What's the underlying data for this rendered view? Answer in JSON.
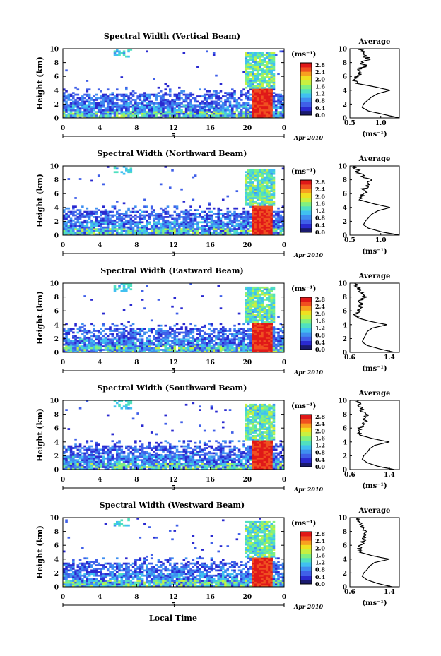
{
  "figure": {
    "xlabel": "Local Time",
    "date_label": "Apr 2010",
    "day_marker": "5",
    "average_title": "Average"
  },
  "colorbar": {
    "unit": "(ms⁻¹)",
    "tick_labels": [
      "0.0",
      "0.4",
      "0.8",
      "1.2",
      "1.6",
      "2.0",
      "2.4",
      "2.8"
    ],
    "colors": [
      "#1a1a6e",
      "#2a2ad0",
      "#3f5fe8",
      "#3f8ff0",
      "#40c0f0",
      "#50e0c0",
      "#80f080",
      "#c8f040",
      "#f0e020",
      "#f8a020",
      "#f05020",
      "#e01818"
    ]
  },
  "chart_data": [
    {
      "type": "heatmap",
      "title": "Spectral Width (Vertical Beam)",
      "ylabel": "Height (km)",
      "x_ticks": [
        "0",
        "4",
        "8",
        "12",
        "16",
        "20",
        "0"
      ],
      "y_ticks": [
        "0",
        "2",
        "4",
        "6",
        "8",
        "10"
      ],
      "xlim": [
        0,
        24
      ],
      "ylim": [
        0,
        10
      ],
      "colorbar_range": [
        0.0,
        2.8
      ],
      "average_profile": {
        "x_ticks": [
          "0.5",
          "1.0"
        ],
        "xlim": [
          0.5,
          1.3
        ],
        "xlabel": "(ms⁻¹)",
        "height_km": [
          0,
          0.5,
          1,
          1.5,
          2,
          2.5,
          3,
          3.5,
          4,
          4.2,
          4.5,
          5,
          5.5,
          6,
          6.5,
          7,
          7.5,
          8,
          8.5,
          9,
          9.5,
          10
        ],
        "width": [
          1.3,
          1.05,
          0.8,
          0.7,
          0.72,
          0.78,
          0.85,
          0.95,
          1.15,
          1.05,
          0.9,
          0.6,
          0.55,
          0.6,
          0.7,
          0.65,
          0.75,
          0.7,
          0.8,
          0.75,
          0.7,
          0.65
        ]
      }
    },
    {
      "type": "heatmap",
      "title": "Spectral Width (Northward Beam)",
      "ylabel": "Height (km)",
      "x_ticks": [
        "0",
        "4",
        "8",
        "12",
        "16",
        "20",
        "0"
      ],
      "y_ticks": [
        "0",
        "2",
        "4",
        "6",
        "8",
        "10"
      ],
      "xlim": [
        0,
        24
      ],
      "ylim": [
        0,
        10
      ],
      "colorbar_range": [
        0.0,
        2.8
      ],
      "average_profile": {
        "x_ticks": [
          "0.5",
          "1.0"
        ],
        "xlim": [
          0.5,
          1.3
        ],
        "xlabel": "(ms⁻¹)",
        "height_km": [
          0,
          0.5,
          1,
          1.5,
          2,
          2.5,
          3,
          3.5,
          4,
          4.2,
          4.5,
          5,
          5.5,
          6,
          6.5,
          7,
          7.5,
          8,
          8.5,
          9,
          9.5,
          10
        ],
        "width": [
          1.3,
          1.0,
          0.8,
          0.72,
          0.75,
          0.8,
          0.85,
          0.95,
          1.15,
          1.05,
          0.9,
          0.7,
          0.65,
          0.75,
          0.7,
          0.8,
          0.75,
          0.85,
          0.7,
          0.65,
          0.6,
          0.6
        ]
      }
    },
    {
      "type": "heatmap",
      "title": "Spectral Width (Eastward Beam)",
      "ylabel": "Height (km)",
      "x_ticks": [
        "0",
        "4",
        "8",
        "12",
        "16",
        "20",
        "0"
      ],
      "y_ticks": [
        "0",
        "2",
        "4",
        "6",
        "8",
        "10"
      ],
      "xlim": [
        0,
        24
      ],
      "ylim": [
        0,
        10
      ],
      "colorbar_range": [
        0.0,
        2.8
      ],
      "average_profile": {
        "x_ticks": [
          "0.6",
          "1.4"
        ],
        "xlim": [
          0.6,
          1.6
        ],
        "xlabel": "(ms⁻¹)",
        "height_km": [
          0,
          0.5,
          1,
          1.5,
          2,
          2.5,
          3,
          3.5,
          4,
          4.2,
          4.5,
          5,
          5.5,
          6,
          6.5,
          7,
          7.5,
          8,
          8.5,
          9,
          9.5,
          10
        ],
        "width": [
          1.5,
          1.2,
          0.95,
          0.85,
          0.88,
          0.92,
          0.95,
          1.05,
          1.35,
          1.2,
          1.0,
          0.75,
          0.72,
          0.78,
          0.8,
          0.85,
          0.8,
          0.9,
          0.82,
          0.8,
          0.75,
          0.7
        ]
      }
    },
    {
      "type": "heatmap",
      "title": "Spectral Width (Southward Beam)",
      "ylabel": "Height (km)",
      "x_ticks": [
        "0",
        "4",
        "8",
        "12",
        "16",
        "20",
        "0"
      ],
      "y_ticks": [
        "0",
        "2",
        "4",
        "6",
        "8",
        "10"
      ],
      "xlim": [
        0,
        24
      ],
      "ylim": [
        0,
        10
      ],
      "colorbar_range": [
        0.0,
        2.8
      ],
      "average_profile": {
        "x_ticks": [
          "0.6",
          "1.4"
        ],
        "xlim": [
          0.6,
          1.6
        ],
        "xlabel": "(ms⁻¹)",
        "height_km": [
          0,
          0.5,
          1,
          1.5,
          2,
          2.5,
          3,
          3.5,
          4,
          4.2,
          4.5,
          5,
          5.5,
          6,
          6.5,
          7,
          7.5,
          8,
          8.5,
          9,
          9.5,
          10
        ],
        "width": [
          1.5,
          1.15,
          0.95,
          0.85,
          0.88,
          0.95,
          1.0,
          1.1,
          1.4,
          1.25,
          1.05,
          0.8,
          0.78,
          0.82,
          0.85,
          0.9,
          0.88,
          0.95,
          0.85,
          0.8,
          0.78,
          0.75
        ]
      }
    },
    {
      "type": "heatmap",
      "title": "Spectral Width (Westward Beam)",
      "ylabel": "Height (km)",
      "x_ticks": [
        "0",
        "4",
        "8",
        "12",
        "16",
        "20",
        "0"
      ],
      "y_ticks": [
        "0",
        "2",
        "4",
        "6",
        "8",
        "10"
      ],
      "xlim": [
        0,
        24
      ],
      "ylim": [
        0,
        10
      ],
      "colorbar_range": [
        0.0,
        2.8
      ],
      "average_profile": {
        "x_ticks": [
          "0.6",
          "1.4"
        ],
        "xlim": [
          0.6,
          1.6
        ],
        "xlabel": "(ms⁻¹)",
        "height_km": [
          0,
          0.5,
          1,
          1.5,
          2,
          2.5,
          3,
          3.5,
          4,
          4.2,
          4.5,
          5,
          5.5,
          6,
          6.5,
          7,
          7.5,
          8,
          8.5,
          9,
          9.5,
          10
        ],
        "width": [
          1.45,
          1.15,
          0.95,
          0.85,
          0.88,
          0.95,
          1.0,
          1.1,
          1.4,
          1.25,
          1.05,
          0.8,
          0.78,
          0.82,
          0.85,
          0.9,
          0.88,
          0.92,
          0.85,
          0.82,
          0.78,
          0.75
        ]
      }
    }
  ]
}
